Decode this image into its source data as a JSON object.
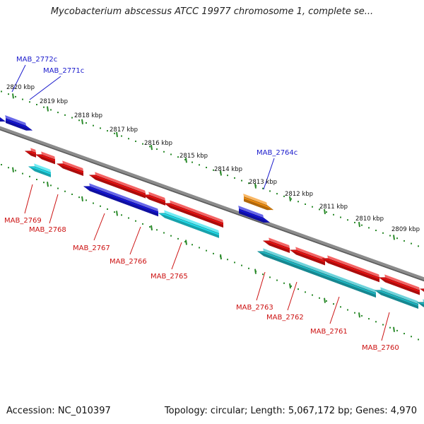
{
  "title": "Mycobacterium abscessus ATCC 19977 chromosome 1, complete se...",
  "footer": {
    "accession": "Accession: NC_010397",
    "summary": "Topology: circular; Length: 5,067,172 bp; Genes: 4,970"
  },
  "colors": {
    "backbone": "#8c8c8c",
    "ruler": "#2a8a2a",
    "forward_label": "#1a1acc",
    "reverse_label": "#cc1111",
    "red": "#ee1111",
    "blue": "#1515dd",
    "cyan": "#22e0ee",
    "teal": "#20bcc8",
    "orange": "#f59010"
  },
  "ruler_labels": [
    "2820 kbp",
    "2819 kbp",
    "2818 kbp",
    "2817 kbp",
    "2816 kbp",
    "2815 kbp",
    "2814 kbp",
    "2813 kbp",
    "2812 kbp",
    "2811 kbp",
    "2810 kbp",
    "2809 kbp"
  ],
  "forward_gene_labels": [
    "MAB_2772c",
    "MAB_2771c",
    "MAB_2764c"
  ],
  "reverse_gene_labels": [
    "MAB_2769",
    "MAB_2768",
    "MAB_2767",
    "MAB_2766",
    "MAB_2765",
    "MAB_2763",
    "MAB_2762",
    "MAB_2761",
    "MAB_2760"
  ]
}
